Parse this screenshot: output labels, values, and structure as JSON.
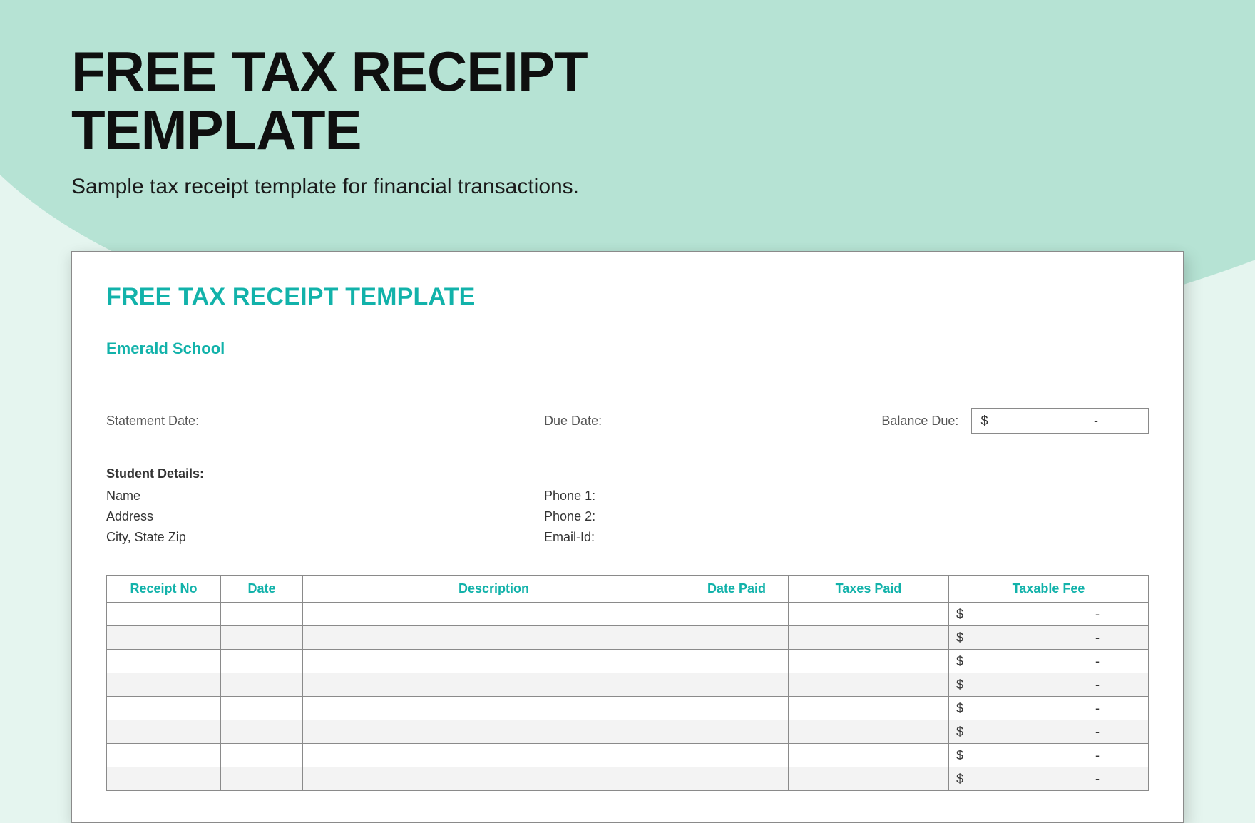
{
  "header": {
    "title_line1": "FREE TAX RECEIPT",
    "title_line2": "TEMPLATE",
    "subtitle": "Sample tax receipt template for financial transactions."
  },
  "colors": {
    "bg_light": "#e5f5ef",
    "bg_wave": "#b6e3d4",
    "accent": "#12b2aa",
    "text_dark": "#0f0f0f",
    "text_body": "#333333",
    "text_muted": "#555555",
    "border": "#8a8a8a",
    "row_alt": "#f3f3f3",
    "white": "#ffffff"
  },
  "document": {
    "title": "FREE TAX RECEIPT TEMPLATE",
    "organization": "Emerald School",
    "meta": {
      "statement_date_label": "Statement Date:",
      "due_date_label": "Due Date:",
      "balance_due_label": "Balance Due:",
      "balance_due_currency": "$",
      "balance_due_value": "-"
    },
    "student": {
      "section_label": "Student Details:",
      "left": [
        "Name",
        "Address",
        "City, State Zip"
      ],
      "right": [
        "Phone 1:",
        "Phone 2:",
        "Email-Id:"
      ]
    },
    "table": {
      "columns": [
        "Receipt No",
        "Date",
        "Description",
        "Date Paid",
        "Taxes Paid",
        "Taxable Fee"
      ],
      "row_count": 8,
      "fee_currency": "$",
      "fee_value": "-"
    }
  }
}
